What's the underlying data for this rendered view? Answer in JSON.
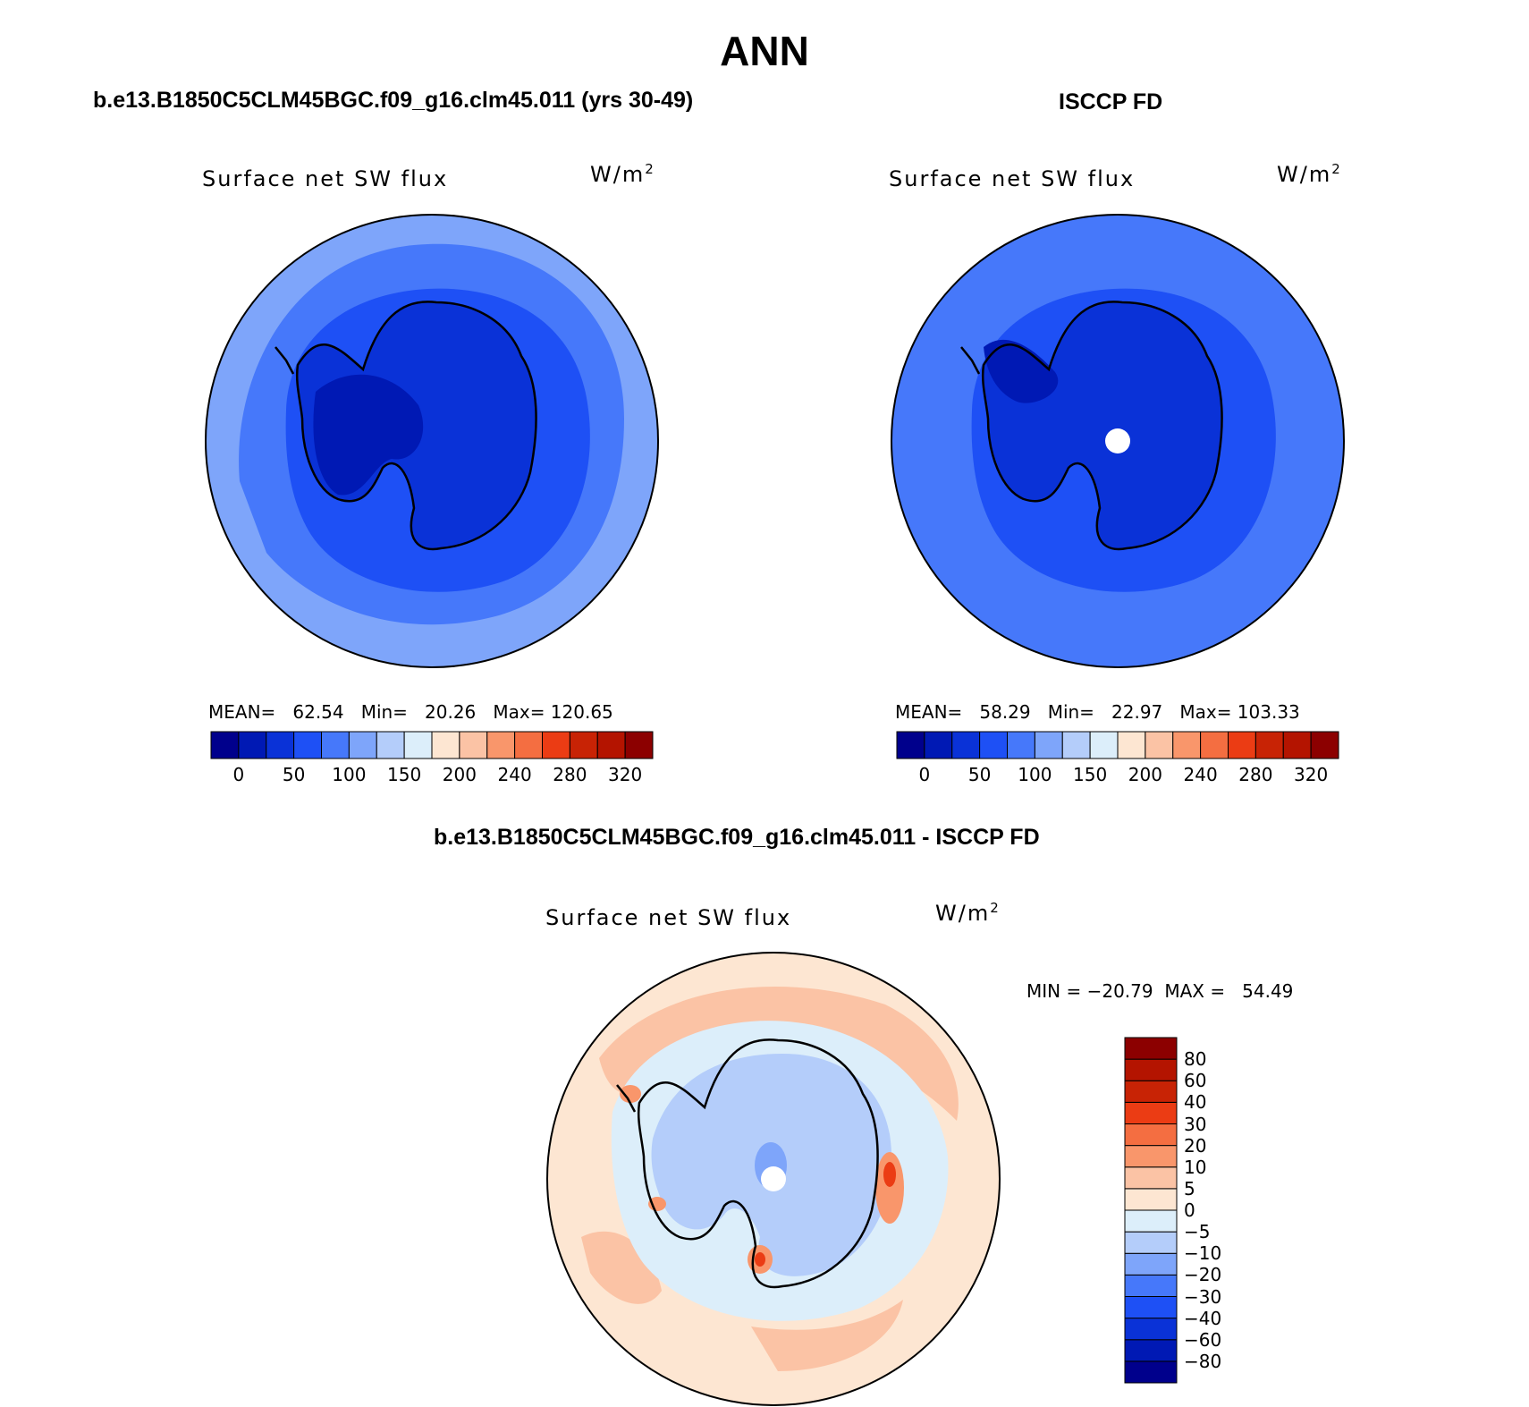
{
  "page": {
    "title": "ANN",
    "diff_title": "b.e13.B1850C5CLM45BGC.f09_g16.clm45.011 - ISCCP FD"
  },
  "panels": [
    {
      "title": "b.e13.B1850C5CLM45BGC.f09_g16.clm45.011 (yrs 30-49)",
      "label": "Surface net SW flux",
      "units": "W/m",
      "units_sup": "2",
      "stats": "MEAN=   62.54   Min=   20.26   Max= 120.65"
    },
    {
      "title": "ISCCP FD",
      "label": "Surface net SW flux",
      "units": "W/m",
      "units_sup": "2",
      "stats": "MEAN=   58.29   Min=   22.97   Max= 103.33"
    },
    {
      "label": "Surface net SW flux",
      "units": "W/m",
      "units_sup": "2",
      "stats": "MIN = −20.79  MAX =   54.49"
    }
  ],
  "colorbar_abs": {
    "colors": [
      "#00008c",
      "#0019b4",
      "#0a32d7",
      "#1e50f5",
      "#4678fa",
      "#7ea5fa",
      "#b4cdfa",
      "#dceefa",
      "#fde6d2",
      "#fbc3a5",
      "#f9966b",
      "#f46e41",
      "#eb3c14",
      "#c82305",
      "#b41400",
      "#8c0000"
    ],
    "ticks": [
      "0",
      "50",
      "100",
      "150",
      "200",
      "240",
      "280",
      "320"
    ]
  },
  "colorbar_diff": {
    "colors": [
      "#00008c",
      "#0019b4",
      "#0a32d7",
      "#1e50f5",
      "#4678fa",
      "#7ea5fa",
      "#b4cdfa",
      "#dceefa",
      "#fde6d2",
      "#fbc3a5",
      "#f9966b",
      "#f46e41",
      "#eb3c14",
      "#c82305",
      "#b41400",
      "#8c0000"
    ],
    "ticks": [
      "−80",
      "−60",
      "−40",
      "−30",
      "−20",
      "−10",
      "−5",
      "0",
      "5",
      "10",
      "20",
      "30",
      "40",
      "60",
      "80"
    ]
  },
  "map_colors": {
    "ocean_far": "#7ea5fa",
    "ocean_mid": "#4678fa",
    "ocean_near": "#1e50f5",
    "land_model": "#0a32d7",
    "land_dark": "#0019b4",
    "missing": "#ffffff",
    "diff_background": "#fde6d2",
    "diff_positive": "#fbc3a5",
    "diff_positive_strong": "#f9966b",
    "diff_peak": "#eb3c14",
    "diff_negative_light": "#dceefa",
    "diff_negative": "#b4cdfa",
    "diff_negative_strong": "#7ea5fa"
  }
}
